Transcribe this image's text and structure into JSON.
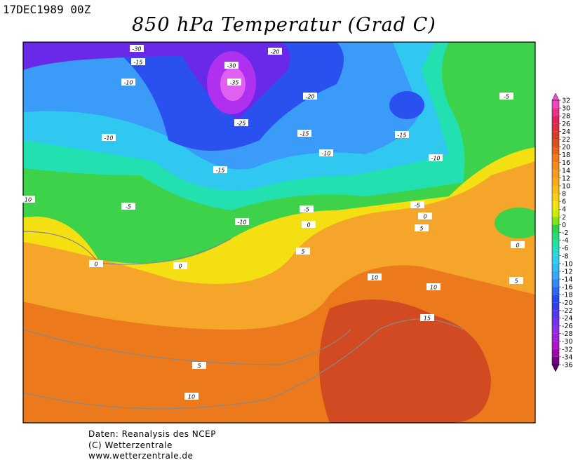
{
  "header": {
    "timestamp": "17DEC1989 00Z",
    "title": "850 hPa Temperatur (Grad C)"
  },
  "map": {
    "contour_labels": [
      -30,
      -20,
      -15,
      -30,
      -35,
      -10,
      -20,
      -5,
      -25,
      -15,
      -10,
      -15,
      -10,
      -10,
      -15,
      10,
      -5,
      -5,
      -5,
      0,
      -10,
      0,
      5,
      5,
      0,
      0,
      0,
      10,
      10,
      5,
      15,
      5,
      10
    ],
    "colorbar": {
      "ticks": [
        32,
        30,
        28,
        26,
        24,
        22,
        20,
        18,
        16,
        14,
        12,
        10,
        8,
        6,
        4,
        2,
        0,
        -2,
        -4,
        -6,
        -8,
        -10,
        -12,
        -14,
        -16,
        -18,
        -20,
        -22,
        -24,
        -26,
        -28,
        -30,
        -32,
        -34,
        -36
      ]
    }
  },
  "footer": {
    "lines": [
      "Daten: Reanalysis des NCEP",
      "(C) Wetterzentrale",
      "www.wetterzentrale.de"
    ]
  }
}
